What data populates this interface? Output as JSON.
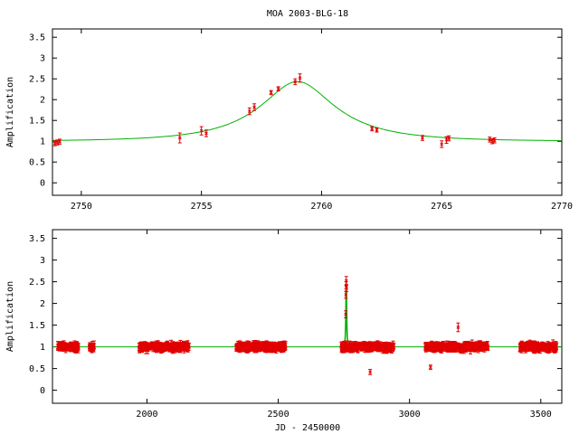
{
  "title": "MOA 2003-BLG-18",
  "colors": {
    "model": "#00b000",
    "points": "#e00000",
    "axes": "#000000"
  },
  "chart_data": [
    {
      "type": "scatter",
      "title": "MOA 2003-BLG-18",
      "xlabel": "",
      "ylabel": "Amplification",
      "xlim": [
        2748.8,
        2770
      ],
      "ylim": [
        -0.3,
        3.7
      ],
      "x_ticks": [
        "2750",
        "2755",
        "2760",
        "2765",
        "2770"
      ],
      "y_ticks": [
        "0",
        "0.5",
        "1",
        "1.5",
        "2",
        "2.5",
        "3",
        "3.5"
      ],
      "model": {
        "t0": 2759.0,
        "u0": 0.44,
        "tE": 3.6
      },
      "points": [
        {
          "x": 2748.9,
          "y": 0.95,
          "err": 0.06
        },
        {
          "x": 2749.0,
          "y": 0.97,
          "err": 0.06
        },
        {
          "x": 2749.1,
          "y": 0.99,
          "err": 0.06
        },
        {
          "x": 2754.1,
          "y": 1.08,
          "err": 0.12
        },
        {
          "x": 2755.0,
          "y": 1.25,
          "err": 0.1
        },
        {
          "x": 2755.2,
          "y": 1.19,
          "err": 0.08
        },
        {
          "x": 2757.0,
          "y": 1.72,
          "err": 0.08
        },
        {
          "x": 2757.2,
          "y": 1.82,
          "err": 0.08
        },
        {
          "x": 2757.9,
          "y": 2.17,
          "err": 0.05
        },
        {
          "x": 2758.2,
          "y": 2.26,
          "err": 0.05
        },
        {
          "x": 2758.9,
          "y": 2.43,
          "err": 0.07
        },
        {
          "x": 2759.1,
          "y": 2.52,
          "err": 0.1
        },
        {
          "x": 2762.1,
          "y": 1.3,
          "err": 0.05
        },
        {
          "x": 2762.3,
          "y": 1.27,
          "err": 0.05
        },
        {
          "x": 2764.2,
          "y": 1.08,
          "err": 0.06
        },
        {
          "x": 2765.0,
          "y": 0.93,
          "err": 0.08
        },
        {
          "x": 2765.2,
          "y": 1.03,
          "err": 0.08
        },
        {
          "x": 2765.3,
          "y": 1.07,
          "err": 0.06
        },
        {
          "x": 2767.0,
          "y": 1.04,
          "err": 0.06
        },
        {
          "x": 2767.1,
          "y": 1.0,
          "err": 0.06
        },
        {
          "x": 2767.2,
          "y": 1.02,
          "err": 0.06
        }
      ]
    },
    {
      "type": "scatter",
      "title": "",
      "xlabel": "JD - 2450000",
      "ylabel": "Amplification",
      "xlim": [
        1640,
        3580
      ],
      "ylim": [
        -0.3,
        3.7
      ],
      "x_ticks": [
        "2000",
        "2500",
        "3000",
        "3500"
      ],
      "y_ticks": [
        "0",
        "0.5",
        "1",
        "1.5",
        "2",
        "2.5",
        "3",
        "3.5"
      ],
      "model": {
        "t0": 2759.0,
        "u0": 0.44,
        "tE": 3.6
      },
      "season_ranges": [
        [
          1660,
          1740
        ],
        [
          1780,
          1800
        ],
        [
          1970,
          2160
        ],
        [
          2340,
          2530
        ],
        [
          2740,
          2940
        ],
        [
          3060,
          3300
        ],
        [
          3420,
          3560
        ]
      ],
      "peak_points": [
        {
          "x": 2757,
          "y": 1.75,
          "err": 0.08
        },
        {
          "x": 2757.5,
          "y": 2.2,
          "err": 0.08
        },
        {
          "x": 2758.5,
          "y": 2.42,
          "err": 0.08
        },
        {
          "x": 2759,
          "y": 2.52,
          "err": 0.1
        },
        {
          "x": 2760,
          "y": 2.35,
          "err": 0.08
        }
      ],
      "outlier_points": [
        {
          "x": 2850,
          "y": 0.42,
          "err": 0.06
        },
        {
          "x": 3080,
          "y": 0.53,
          "err": 0.05
        },
        {
          "x": 3185,
          "y": 1.45,
          "err": 0.1
        }
      ]
    }
  ]
}
